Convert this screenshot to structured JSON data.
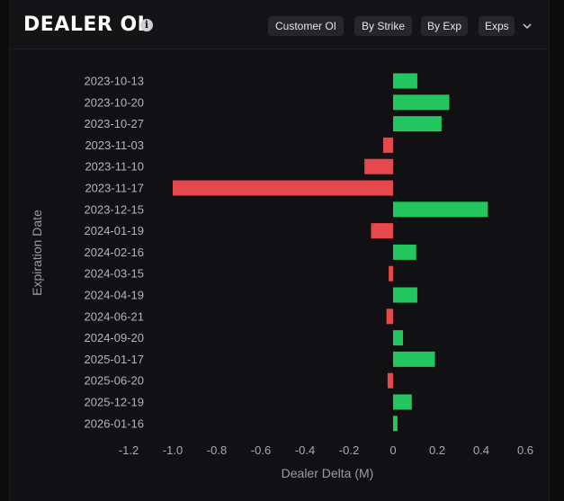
{
  "header": {
    "title": "DEALER OI",
    "info_icon": "info-icon",
    "buttons": [
      "Customer OI",
      "By Strike",
      "By Exp",
      "Exps"
    ],
    "dropdown_icon": "chevron-down-icon"
  },
  "colors": {
    "positive": "#22c55e",
    "negative": "#e5484d",
    "background": "#111113"
  },
  "chart_data": {
    "type": "bar",
    "orientation": "horizontal",
    "xlabel": "Dealer Delta (M)",
    "ylabel": "Expiration Date",
    "xlim": [
      -1.2,
      0.6
    ],
    "xticks": [
      "-1.2",
      "-1.0",
      "-0.8",
      "-0.6",
      "-0.4",
      "-0.2",
      "0",
      "0.2",
      "0.4",
      "0.6"
    ],
    "categories": [
      "2023-10-13",
      "2023-10-20",
      "2023-10-27",
      "2023-11-03",
      "2023-11-10",
      "2023-11-17",
      "2023-12-15",
      "2024-01-19",
      "2024-02-16",
      "2024-03-15",
      "2024-04-19",
      "2024-06-21",
      "2024-09-20",
      "2025-01-17",
      "2025-06-20",
      "2025-12-19",
      "2026-01-16"
    ],
    "values": [
      0.11,
      0.255,
      0.22,
      -0.045,
      -0.13,
      -1.0,
      0.43,
      -0.1,
      0.105,
      -0.02,
      0.11,
      -0.03,
      0.045,
      0.19,
      -0.025,
      0.085,
      0.02
    ],
    "grid": false,
    "legend": "none"
  }
}
